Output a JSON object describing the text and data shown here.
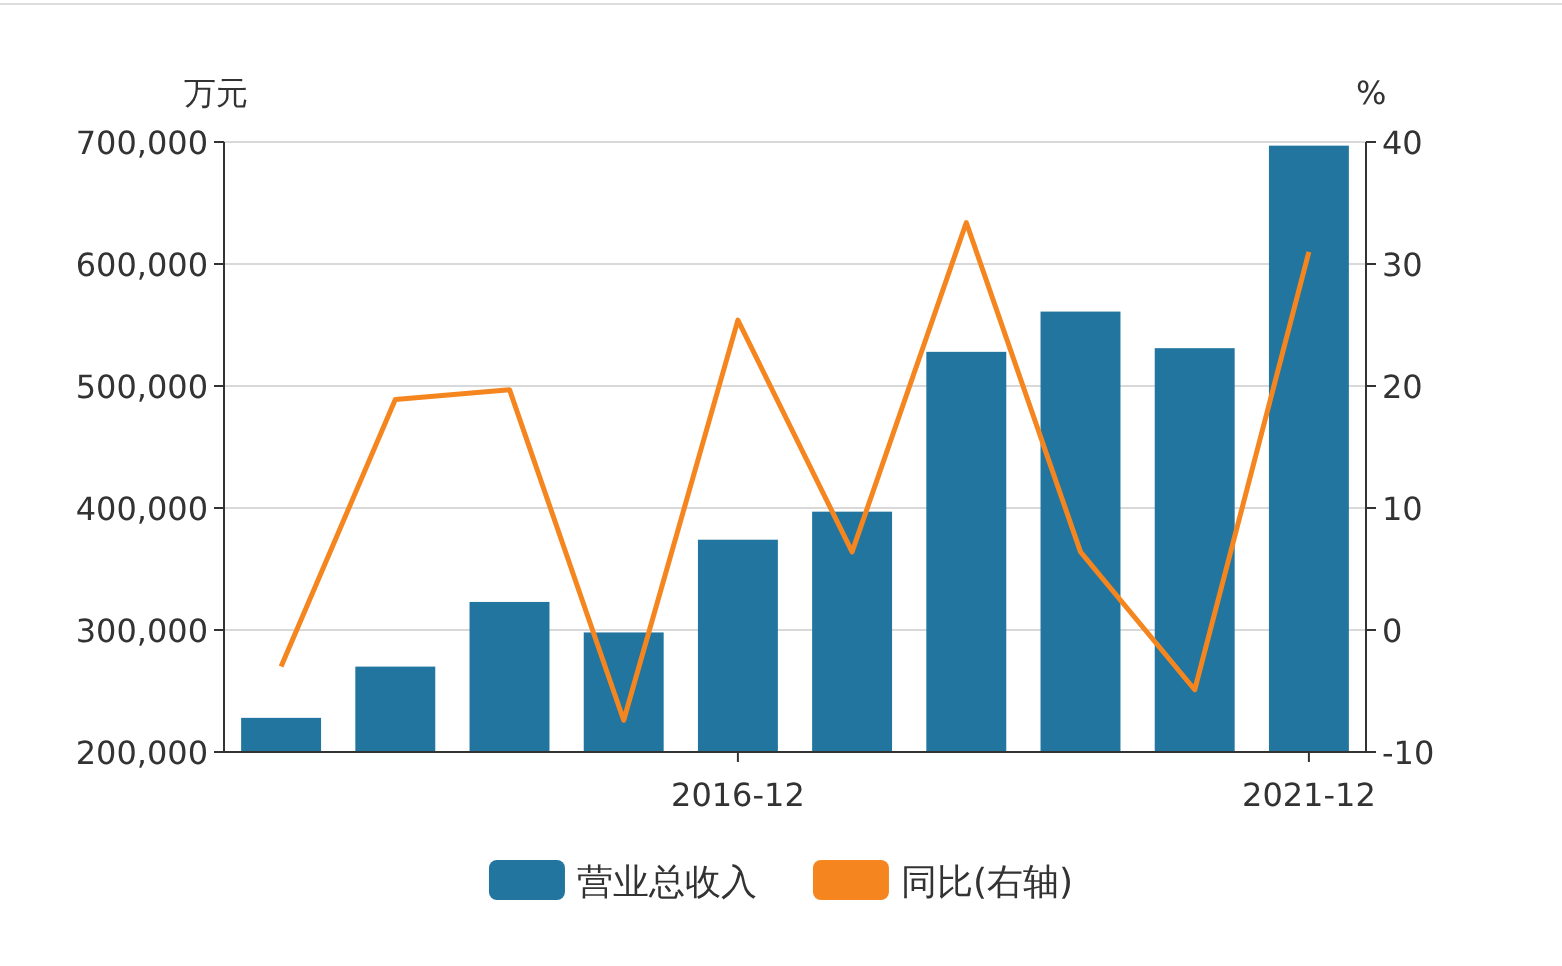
{
  "chart_data": {
    "type": "bar",
    "ylabel": "万元",
    "y2label": "%",
    "categories": [
      null,
      null,
      null,
      null,
      "2016-12",
      null,
      null,
      null,
      null,
      "2021-12"
    ],
    "series": [
      {
        "name": "营业总收入",
        "color": "#21759f",
        "values": [
          228000,
          270000,
          323000,
          298000,
          374000,
          397000,
          528000,
          561000,
          531000,
          697000
        ]
      },
      {
        "name": "同比(右轴)",
        "type": "line",
        "axis": "y2",
        "color": "#f5861f",
        "values": [
          -3,
          18.9,
          19.7,
          -7.4,
          25.4,
          6.4,
          33.4,
          6.4,
          -4.9,
          31
        ]
      }
    ],
    "ylim": [
      200000,
      700000
    ],
    "yticks": [
      {
        "value": 200000,
        "label": "200,000"
      },
      {
        "value": 300000,
        "label": "300,000"
      },
      {
        "value": 400000,
        "label": "400,000"
      },
      {
        "value": 500000,
        "label": "500,000"
      },
      {
        "value": 600000,
        "label": "600,000"
      },
      {
        "value": 700000,
        "label": "700,000"
      }
    ],
    "y2lim": [
      -10,
      40
    ],
    "y2ticks": [
      -10,
      0,
      10,
      20,
      30,
      40
    ],
    "grid": "y",
    "legend": "bottom",
    "marker": "none",
    "line_style": "solid"
  }
}
